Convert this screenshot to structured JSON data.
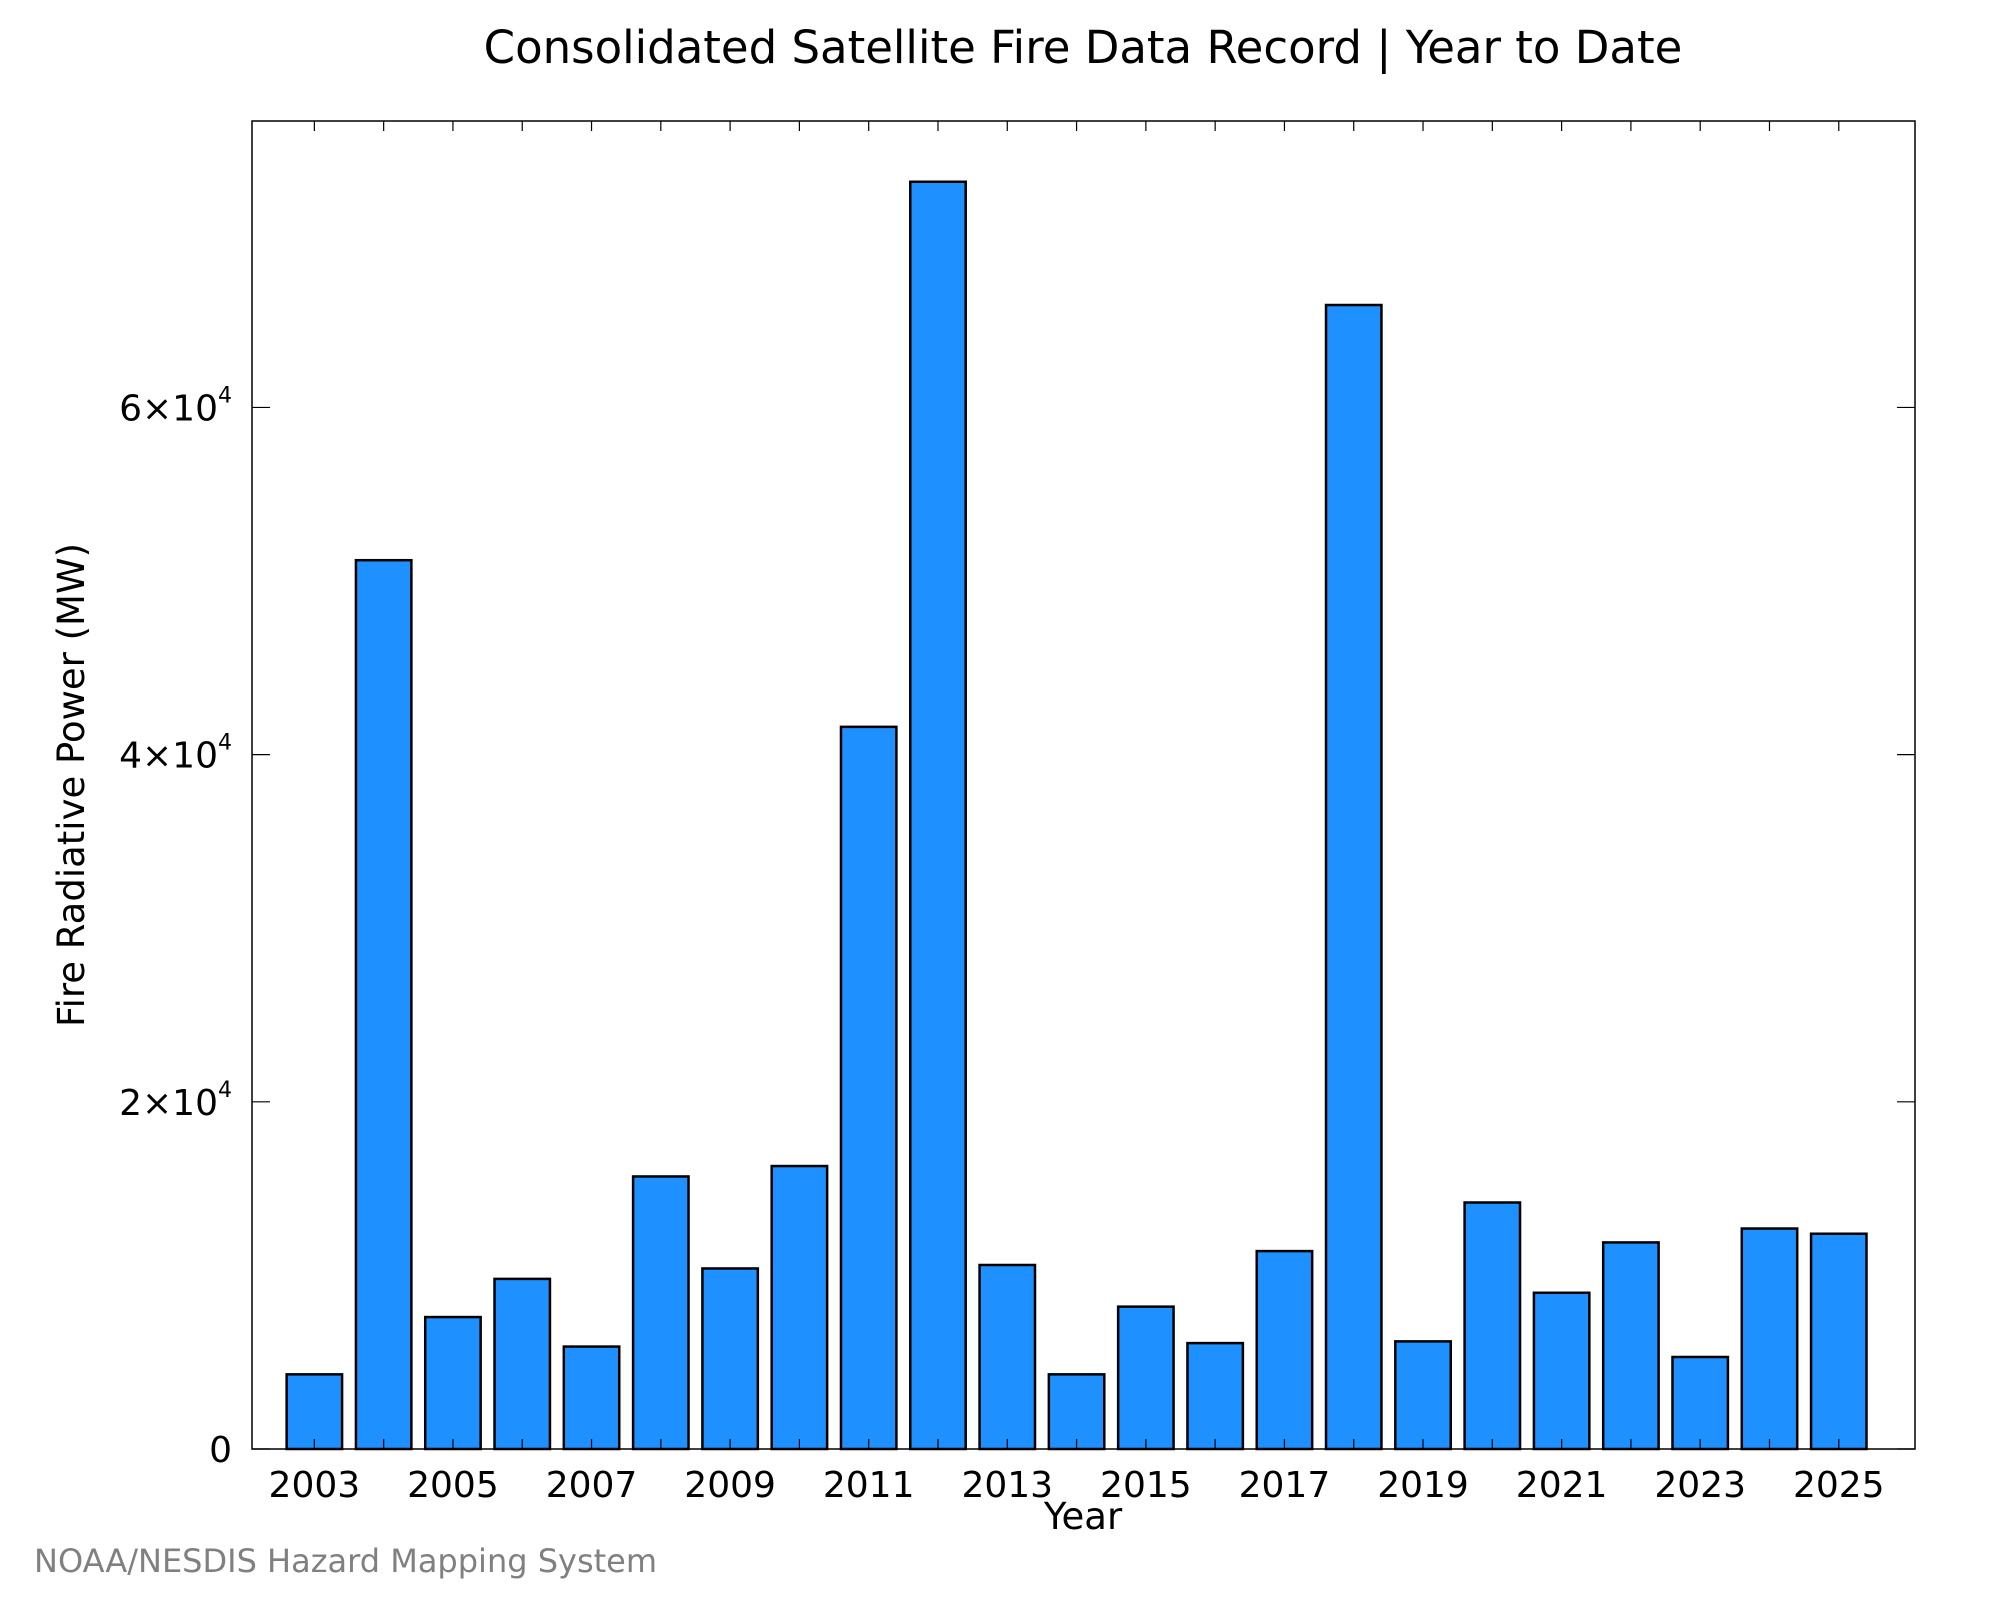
{
  "chart_data": {
    "type": "bar",
    "title": "Consolidated Satellite Fire Data Record | Year to Date",
    "xlabel": "Year",
    "ylabel": "Fire Radiative Power (MW)",
    "footer": "NOAA/NESDIS Hazard Mapping System",
    "categories": [
      2003,
      2004,
      2005,
      2006,
      2007,
      2008,
      2009,
      2010,
      2011,
      2012,
      2013,
      2014,
      2015,
      2016,
      2017,
      2018,
      2019,
      2020,
      2021,
      2022,
      2023,
      2024,
      2025
    ],
    "values": [
      4300,
      51200,
      7600,
      9800,
      5900,
      15700,
      10400,
      16300,
      41600,
      73000,
      10600,
      4300,
      8200,
      6100,
      11400,
      65900,
      6200,
      14200,
      9000,
      11900,
      5300,
      12700,
      12400
    ],
    "ylim": [
      0,
      76500
    ],
    "xlim": [
      2002.1,
      2026.1
    ],
    "x_tick_labels": [
      "2003",
      "2005",
      "2007",
      "2009",
      "2011",
      "2013",
      "2015",
      "2017",
      "2019",
      "2021",
      "2023",
      "2025"
    ],
    "y_ticks": [
      {
        "value": 0,
        "mantissa": "0",
        "exponent": ""
      },
      {
        "value": 20000,
        "mantissa": "2×10",
        "exponent": "4"
      },
      {
        "value": 40000,
        "mantissa": "4×10",
        "exponent": "4"
      },
      {
        "value": 60000,
        "mantissa": "6×10",
        "exponent": "4"
      }
    ],
    "bar_color": "#1e90ff",
    "bar_edge_color": "#000000",
    "grid": false,
    "legend": "none"
  }
}
